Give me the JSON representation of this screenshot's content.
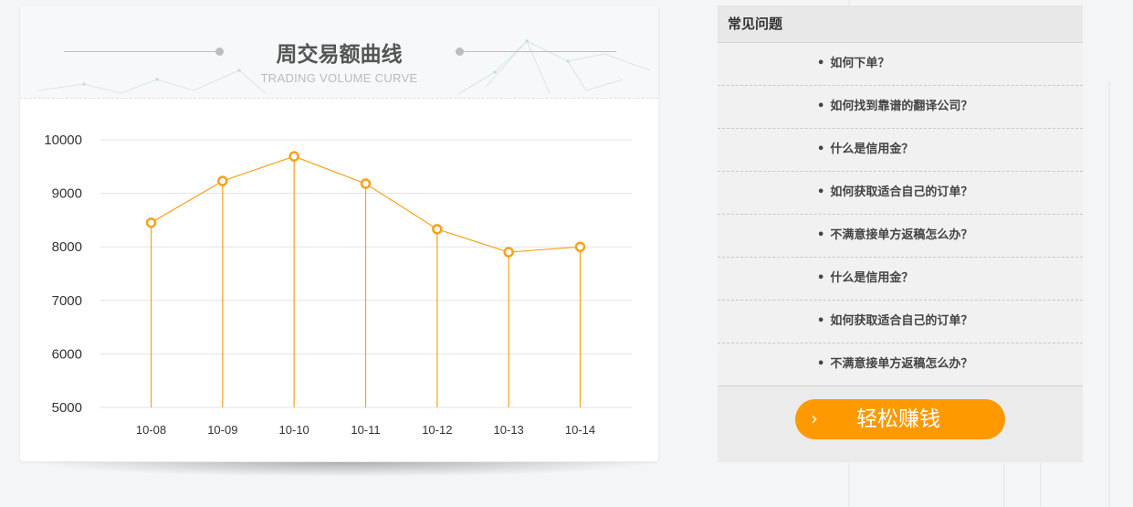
{
  "chart": {
    "title": "周交易额曲线",
    "subtitle": "TRADING VOLUME CURVE"
  },
  "chart_data": {
    "type": "line",
    "categories": [
      "10-08",
      "10-09",
      "10-10",
      "10-11",
      "10-12",
      "10-13",
      "10-14"
    ],
    "series": [
      {
        "values": [
          8450,
          9230,
          9690,
          9180,
          8330,
          7900,
          8000
        ]
      }
    ],
    "title": "周交易额曲线",
    "ylim": [
      5000,
      10000
    ],
    "yticks": [
      5000,
      6000,
      7000,
      8000,
      9000,
      10000
    ],
    "grid": true,
    "drop_lines": true,
    "color": "#f9a01b"
  },
  "faq": {
    "title": "常见问题",
    "bullet": "•",
    "items": [
      {
        "label": "如何下单？"
      },
      {
        "label": "如何找到靠谱的翻译公司？"
      },
      {
        "label": "什么是信用金？"
      },
      {
        "label": "如何获取适合自己的订单？"
      },
      {
        "label": "不满意接单方返稿怎么办？"
      },
      {
        "label": "什么是信用金？"
      },
      {
        "label": "如何获取适合自己的订单？"
      },
      {
        "label": "不满意接单方返稿怎么办？"
      }
    ],
    "cta": {
      "label": "轻松赚钱",
      "icon": "chevron-right-icon",
      "color": "#ff9900"
    }
  }
}
